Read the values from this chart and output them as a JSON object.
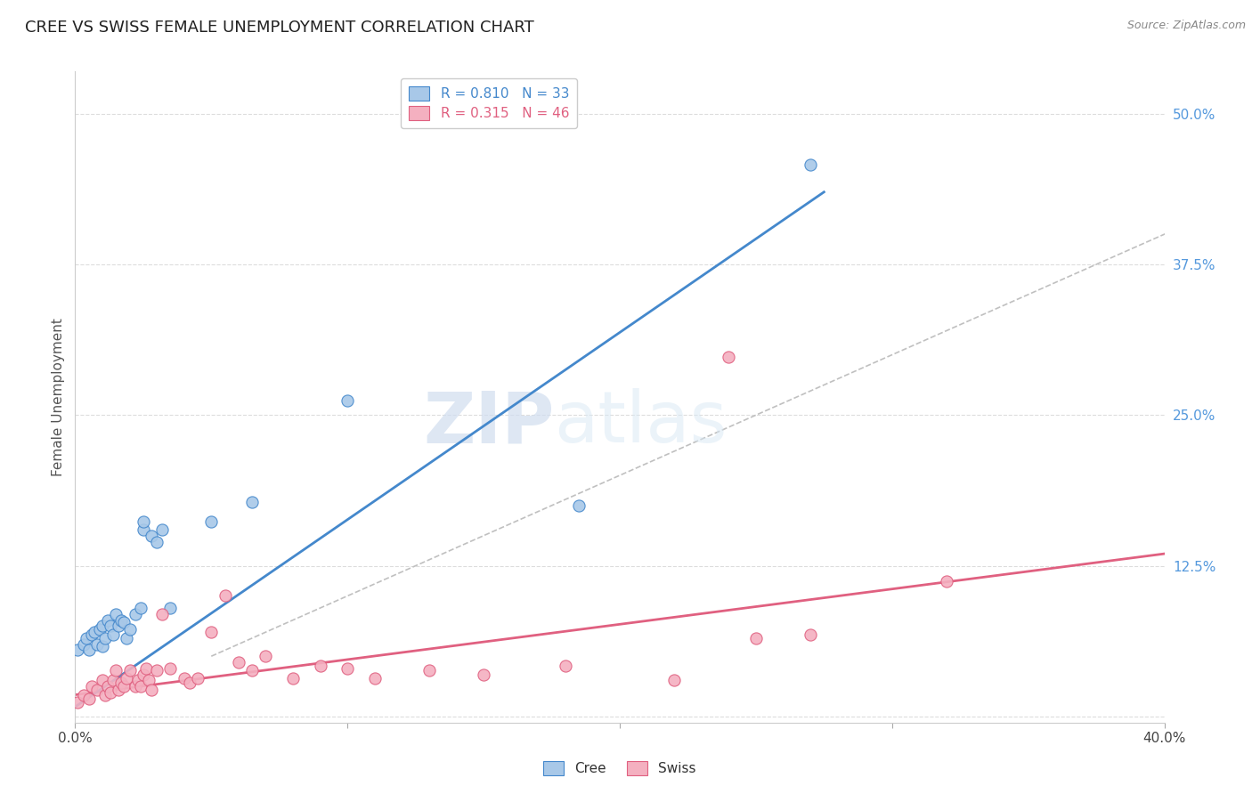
{
  "title": "CREE VS SWISS FEMALE UNEMPLOYMENT CORRELATION CHART",
  "source": "Source: ZipAtlas.com",
  "ylabel": "Female Unemployment",
  "xlabel": "",
  "watermark_zip": "ZIP",
  "watermark_atlas": "atlas",
  "xlim": [
    0.0,
    0.4
  ],
  "ylim": [
    -0.005,
    0.535
  ],
  "yticks_right": [
    0.0,
    0.125,
    0.25,
    0.375,
    0.5
  ],
  "yticks_right_labels": [
    "",
    "12.5%",
    "25.0%",
    "37.5%",
    "50.0%"
  ],
  "cree_color": "#A8C8E8",
  "swiss_color": "#F4B0C0",
  "cree_line_color": "#4488CC",
  "swiss_line_color": "#E06080",
  "ref_line_color": "#C0C0C0",
  "grid_color": "#DDDDDD",
  "background_color": "#FFFFFF",
  "title_fontsize": 13,
  "cree_dots": [
    [
      0.001,
      0.055
    ],
    [
      0.003,
      0.06
    ],
    [
      0.004,
      0.065
    ],
    [
      0.005,
      0.055
    ],
    [
      0.006,
      0.068
    ],
    [
      0.007,
      0.07
    ],
    [
      0.008,
      0.06
    ],
    [
      0.009,
      0.072
    ],
    [
      0.01,
      0.075
    ],
    [
      0.01,
      0.058
    ],
    [
      0.011,
      0.065
    ],
    [
      0.012,
      0.08
    ],
    [
      0.013,
      0.075
    ],
    [
      0.014,
      0.068
    ],
    [
      0.015,
      0.085
    ],
    [
      0.016,
      0.075
    ],
    [
      0.017,
      0.08
    ],
    [
      0.018,
      0.078
    ],
    [
      0.019,
      0.065
    ],
    [
      0.02,
      0.072
    ],
    [
      0.022,
      0.085
    ],
    [
      0.024,
      0.09
    ],
    [
      0.025,
      0.155
    ],
    [
      0.025,
      0.162
    ],
    [
      0.028,
      0.15
    ],
    [
      0.03,
      0.145
    ],
    [
      0.032,
      0.155
    ],
    [
      0.035,
      0.09
    ],
    [
      0.05,
      0.162
    ],
    [
      0.065,
      0.178
    ],
    [
      0.1,
      0.262
    ],
    [
      0.185,
      0.175
    ],
    [
      0.27,
      0.458
    ]
  ],
  "swiss_dots": [
    [
      0.001,
      0.012
    ],
    [
      0.003,
      0.018
    ],
    [
      0.005,
      0.015
    ],
    [
      0.006,
      0.025
    ],
    [
      0.008,
      0.022
    ],
    [
      0.01,
      0.03
    ],
    [
      0.011,
      0.018
    ],
    [
      0.012,
      0.025
    ],
    [
      0.013,
      0.02
    ],
    [
      0.014,
      0.03
    ],
    [
      0.015,
      0.038
    ],
    [
      0.016,
      0.022
    ],
    [
      0.017,
      0.028
    ],
    [
      0.018,
      0.025
    ],
    [
      0.019,
      0.032
    ],
    [
      0.02,
      0.038
    ],
    [
      0.022,
      0.025
    ],
    [
      0.023,
      0.03
    ],
    [
      0.024,
      0.025
    ],
    [
      0.025,
      0.035
    ],
    [
      0.026,
      0.04
    ],
    [
      0.027,
      0.03
    ],
    [
      0.028,
      0.022
    ],
    [
      0.03,
      0.038
    ],
    [
      0.032,
      0.085
    ],
    [
      0.035,
      0.04
    ],
    [
      0.04,
      0.032
    ],
    [
      0.042,
      0.028
    ],
    [
      0.045,
      0.032
    ],
    [
      0.05,
      0.07
    ],
    [
      0.055,
      0.1
    ],
    [
      0.06,
      0.045
    ],
    [
      0.065,
      0.038
    ],
    [
      0.07,
      0.05
    ],
    [
      0.08,
      0.032
    ],
    [
      0.09,
      0.042
    ],
    [
      0.1,
      0.04
    ],
    [
      0.11,
      0.032
    ],
    [
      0.13,
      0.038
    ],
    [
      0.15,
      0.035
    ],
    [
      0.18,
      0.042
    ],
    [
      0.22,
      0.03
    ],
    [
      0.25,
      0.065
    ],
    [
      0.27,
      0.068
    ],
    [
      0.32,
      0.112
    ],
    [
      0.24,
      0.298
    ]
  ],
  "cree_line": [
    [
      0.0,
      0.008
    ],
    [
      0.275,
      0.435
    ]
  ],
  "swiss_line": [
    [
      0.0,
      0.018
    ],
    [
      0.4,
      0.135
    ]
  ],
  "ref_line": [
    [
      0.05,
      0.05
    ],
    [
      0.5,
      0.5
    ]
  ]
}
